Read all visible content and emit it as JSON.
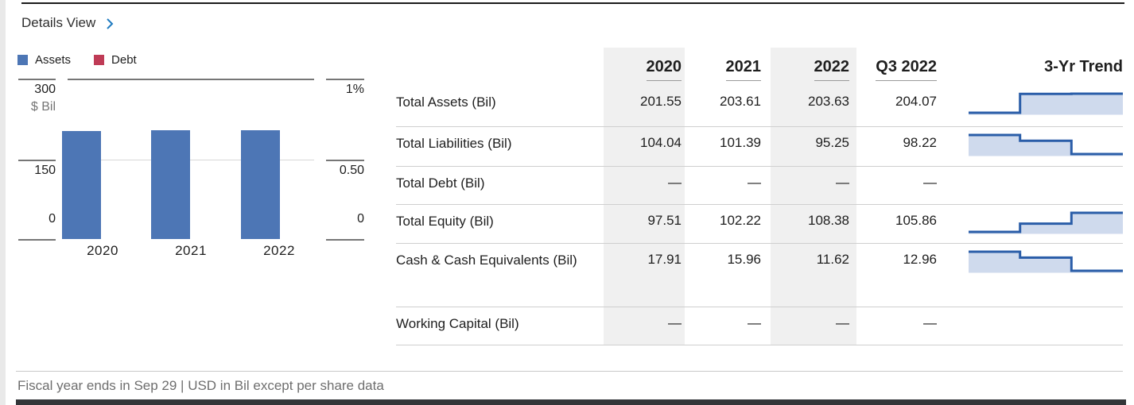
{
  "header": {
    "details_view_label": "Details View"
  },
  "legend": {
    "items": [
      {
        "label": "Assets",
        "color": "#4d76b5"
      },
      {
        "label": "Debt",
        "color": "#bf3b56"
      }
    ]
  },
  "chart_data": {
    "type": "bar",
    "title": "",
    "categories": [
      "2020",
      "2021",
      "2022"
    ],
    "series": [
      {
        "name": "Assets",
        "values": [
          201.55,
          203.61,
          203.63
        ],
        "color": "#4d76b5",
        "axis": "left"
      },
      {
        "name": "Debt",
        "values": [
          null,
          null,
          null
        ],
        "color": "#bf3b56",
        "axis": "right"
      }
    ],
    "left_axis": {
      "label": "$ Bil",
      "ticks": [
        "300",
        "150",
        "0"
      ],
      "range": [
        0,
        300
      ]
    },
    "right_axis": {
      "ticks": [
        "1%",
        "0.50",
        "0"
      ],
      "range": [
        0,
        1
      ]
    },
    "grid": "single middle gridline",
    "legend_position": "top-left"
  },
  "table": {
    "columns": [
      "",
      "2020",
      "2021",
      "2022",
      "Q3 2022",
      "3-Yr Trend"
    ],
    "shaded_columns": [
      "2020",
      "2022"
    ],
    "rows": [
      {
        "label": "Total Assets (Bil)",
        "values": [
          "201.55",
          "203.61",
          "203.63",
          "204.07"
        ],
        "trend": [
          201.55,
          203.61,
          203.63
        ]
      },
      {
        "label": "Total Liabilities (Bil)",
        "values": [
          "104.04",
          "101.39",
          "95.25",
          "98.22"
        ],
        "trend": [
          104.04,
          101.39,
          95.25
        ]
      },
      {
        "label": "Total Debt (Bil)",
        "values": [
          "—",
          "—",
          "—",
          "—"
        ],
        "trend": null
      },
      {
        "label": "Total Equity (Bil)",
        "values": [
          "97.51",
          "102.22",
          "108.38",
          "105.86"
        ],
        "trend": [
          97.51,
          102.22,
          108.38
        ]
      },
      {
        "label": "Cash & Cash Equivalents (Bil)",
        "values": [
          "17.91",
          "15.96",
          "11.62",
          "12.96"
        ],
        "trend": [
          17.91,
          15.96,
          11.62
        ]
      },
      {
        "label": "Working Capital (Bil)",
        "values": [
          "—",
          "—",
          "—",
          "—"
        ],
        "trend": null
      }
    ]
  },
  "footer": {
    "note": "Fiscal year ends in Sep 29 | USD in Bil except per share data"
  },
  "colors": {
    "assets_blue": "#4d76b5",
    "debt_red": "#bf3b56",
    "spark_line": "#2a5da8",
    "spark_fill": "#cfdaed",
    "link_blue": "#1f7bc0",
    "column_shade": "#f0f0f0",
    "bottom_bar": "#333538"
  }
}
